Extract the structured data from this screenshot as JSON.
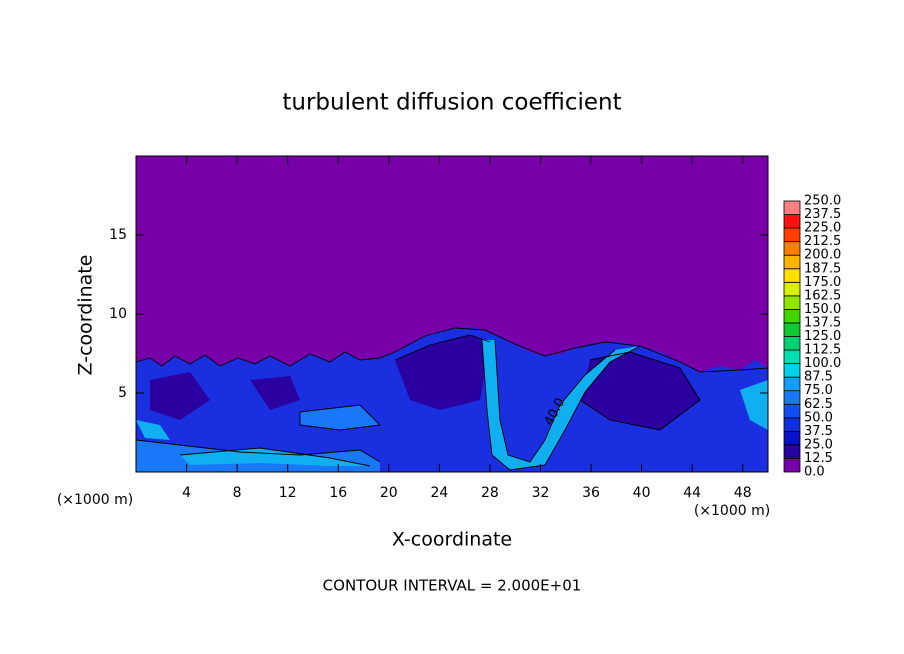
{
  "chart_data": {
    "type": "contour",
    "title": "turbulent diffusion coefficient",
    "x_label": "X-coordinate",
    "y_label": "Z-coordinate",
    "x_unit_left": "(×1000 m)",
    "x_unit_right": "(×1000 m)",
    "footnote": "CONTOUR INTERVAL = 2.000E+01",
    "annotations": [
      "40.0"
    ],
    "xlim": [
      0,
      50
    ],
    "xticks": [
      4,
      8,
      12,
      16,
      20,
      24,
      28,
      32,
      36,
      40,
      44,
      48
    ],
    "ylim": [
      0,
      20
    ],
    "yticks": [
      5,
      10,
      15
    ],
    "colorbar": {
      "levels": [
        {
          "value": 0,
          "label": "0.0"
        },
        12.5,
        25,
        37.5,
        50,
        62.5,
        75,
        87.5,
        100,
        112.5,
        125,
        137.5,
        150,
        162.5,
        175,
        187.5,
        200,
        212.5,
        225,
        237.5,
        250
      ],
      "colors": [
        "#7800a8",
        "#2a00a0",
        "#0a10c8",
        "#1030e0",
        "#1050f0",
        "#1878f8",
        "#10a0f8",
        "#00d0e8",
        "#00e0b0",
        "#00d070",
        "#10c830",
        "#40d800",
        "#90e800",
        "#d8f000",
        "#ffe000",
        "#ffb400",
        "#ff8000",
        "#ff4000",
        "#ff1010",
        "#f88080"
      ]
    }
  }
}
